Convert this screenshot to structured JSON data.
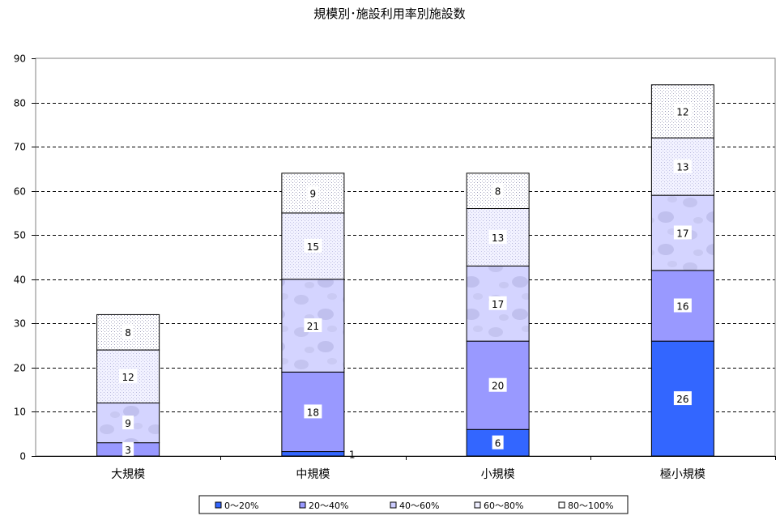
{
  "chart_data": {
    "type": "bar",
    "stacked": true,
    "title": "規模別･施設利用率別施設数",
    "xlabel": "",
    "ylabel": "",
    "categories": [
      "大規模",
      "中規模",
      "小規模",
      "極小規模"
    ],
    "ylim": [
      0,
      90
    ],
    "yticks": [
      0,
      10,
      20,
      30,
      40,
      50,
      60,
      70,
      80,
      90
    ],
    "grid": true,
    "legend_position": "bottom",
    "series": [
      {
        "name": "0～20%",
        "values": [
          0,
          1,
          6,
          26
        ],
        "color": "#3366ff",
        "pattern": "solid"
      },
      {
        "name": "20～40%",
        "values": [
          3,
          18,
          20,
          16
        ],
        "color": "#9999ff",
        "pattern": "solid"
      },
      {
        "name": "40～60%",
        "values": [
          9,
          21,
          17,
          17
        ],
        "color": "#ccccff",
        "pattern": "mottled"
      },
      {
        "name": "60～80%",
        "values": [
          12,
          15,
          13,
          13
        ],
        "color": "#eeeeff",
        "pattern": "dots"
      },
      {
        "name": "80～100%",
        "values": [
          8,
          9,
          8,
          12
        ],
        "color": "#ffffff",
        "pattern": "fine-dots"
      }
    ]
  }
}
